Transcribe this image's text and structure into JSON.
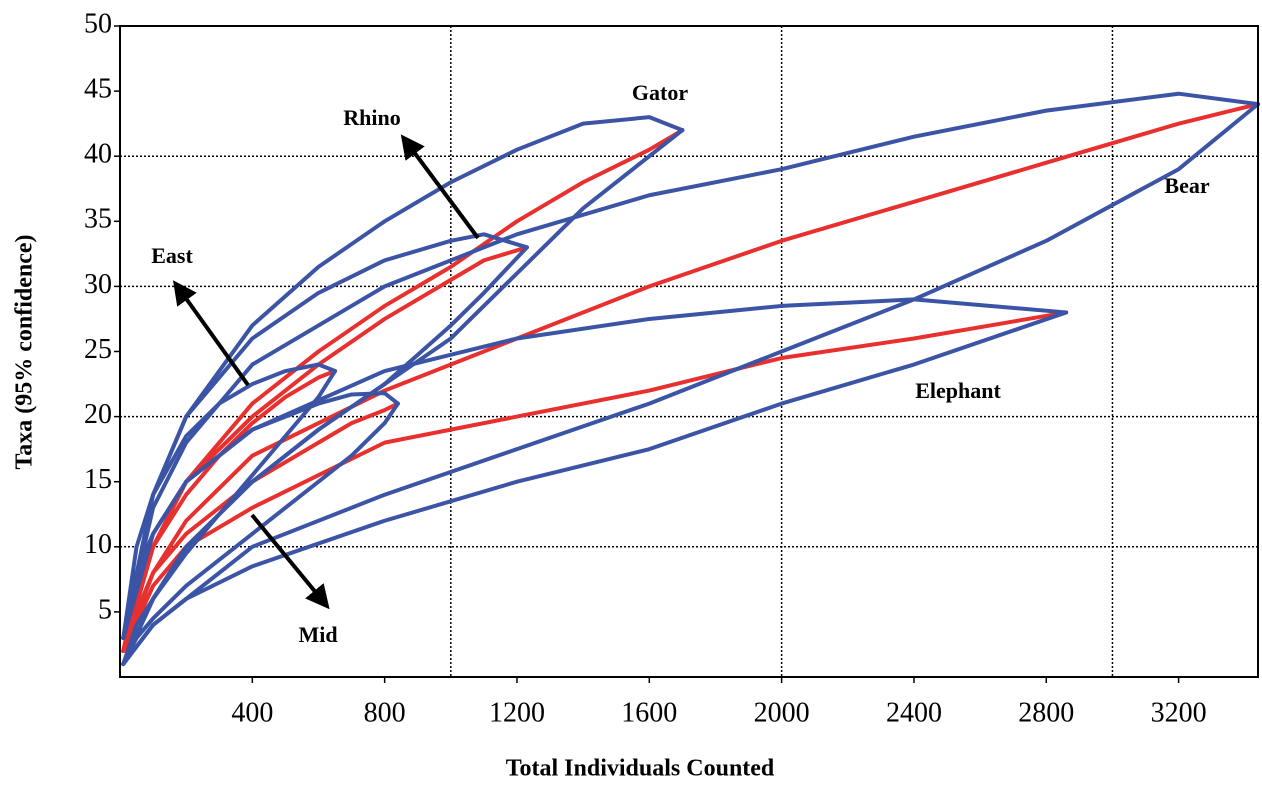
{
  "chart_data": {
    "type": "line",
    "x_label": "Total Individuals Counted",
    "y_label": "Taxa (95% confidence)",
    "xlim": [
      0,
      3440
    ],
    "ylim": [
      0,
      50
    ],
    "xticks": [
      400,
      800,
      1200,
      1600,
      2000,
      2400,
      2800,
      3200
    ],
    "yticks": [
      5,
      10,
      15,
      20,
      25,
      30,
      35,
      40,
      45,
      50
    ],
    "xgrid": [
      1000,
      2000,
      3000
    ],
    "ygrid": [
      10,
      20,
      30,
      40
    ],
    "color": "#e8302e",
    "band_color": "#3b54a5",
    "series": [
      {
        "name": "Gator",
        "x": [
          10,
          100,
          200,
          400,
          600,
          800,
          1000,
          1200,
          1400,
          1600,
          1700
        ],
        "values": [
          2,
          10,
          15,
          21,
          25,
          28.5,
          31.5,
          35,
          38,
          40.5,
          42
        ],
        "upper": [
          3,
          14,
          20,
          27,
          31.5,
          35,
          38,
          40.5,
          42.5,
          43,
          42
        ],
        "lower": [
          1,
          6,
          10,
          15,
          19,
          22.5,
          26,
          31,
          36,
          40,
          42
        ]
      },
      {
        "name": "Bear",
        "x": [
          10,
          100,
          200,
          400,
          800,
          1200,
          1600,
          2000,
          2400,
          2800,
          3200,
          3440
        ],
        "values": [
          2,
          8,
          12,
          17,
          22,
          26,
          30,
          33.5,
          36.5,
          39.5,
          42.5,
          44
        ],
        "upper": [
          3,
          13,
          18,
          24,
          30,
          34,
          37,
          39,
          41.5,
          43.5,
          44.8,
          44
        ],
        "lower": [
          1,
          4,
          6,
          10,
          14,
          17.5,
          21,
          25,
          29,
          33.5,
          39,
          44
        ]
      },
      {
        "name": "Elephant",
        "x": [
          10,
          100,
          200,
          400,
          800,
          1200,
          1600,
          2000,
          2400,
          2860
        ],
        "values": [
          2,
          7,
          10,
          13,
          18,
          20,
          22,
          24.5,
          26,
          28
        ],
        "upper": [
          3,
          11,
          15,
          19,
          23.5,
          26,
          27.5,
          28.5,
          29,
          28
        ],
        "lower": [
          1,
          4,
          6,
          8.5,
          12,
          15,
          17.5,
          21,
          24,
          28
        ]
      },
      {
        "name": "Rhino",
        "x": [
          10,
          100,
          200,
          400,
          600,
          800,
          1000,
          1100,
          1230
        ],
        "values": [
          2,
          10,
          15,
          20,
          24,
          27.5,
          30.5,
          32,
          33
        ],
        "upper": [
          3,
          14,
          20,
          26,
          29.5,
          32,
          33.5,
          34,
          33
        ],
        "lower": [
          1,
          6,
          10,
          15,
          19,
          22.5,
          27,
          29.5,
          33
        ]
      },
      {
        "name": "East",
        "x": [
          10,
          50,
          100,
          200,
          300,
          400,
          500,
          600,
          650
        ],
        "values": [
          2,
          7,
          10,
          14,
          17,
          19.5,
          21.5,
          23,
          23.5
        ],
        "upper": [
          3,
          10,
          14,
          18.5,
          21,
          22.5,
          23.5,
          24,
          23.5
        ],
        "lower": [
          1,
          4,
          6,
          9.5,
          12.5,
          15.5,
          18.5,
          21.5,
          23.5
        ]
      },
      {
        "name": "Mid",
        "x": [
          10,
          50,
          100,
          200,
          400,
          600,
          700,
          800,
          840
        ],
        "values": [
          2,
          5,
          8,
          11,
          15,
          18,
          19.5,
          20.5,
          21
        ],
        "upper": [
          3,
          8,
          11,
          15,
          19,
          21,
          21.7,
          21.8,
          21
        ],
        "lower": [
          1,
          3,
          4.5,
          7,
          11,
          15,
          17,
          19.5,
          21
        ]
      }
    ]
  }
}
